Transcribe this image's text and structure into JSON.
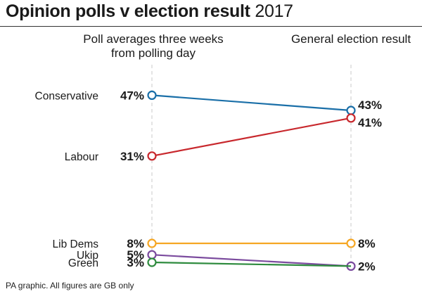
{
  "header": {
    "title_bold": "Opinion polls v election result",
    "title_year": "2017"
  },
  "columns": {
    "left": "Poll averages three weeks from polling day",
    "right": "General election result"
  },
  "footer": "PA graphic. All figures are GB only",
  "chart_data": {
    "type": "line",
    "categories": [
      "Poll averages three weeks from polling day",
      "General election result"
    ],
    "series": [
      {
        "name": "Conservative",
        "values": [
          47,
          43
        ],
        "labels": [
          "47%",
          "43%"
        ],
        "color": "#1a6fa8"
      },
      {
        "name": "Labour",
        "values": [
          31,
          41
        ],
        "labels": [
          "31%",
          "41%"
        ],
        "color": "#c8282d"
      },
      {
        "name": "Lib Dems",
        "values": [
          8,
          8
        ],
        "labels": [
          "8%",
          "8%"
        ],
        "color": "#f5a623"
      },
      {
        "name": "Ukip",
        "values": [
          5,
          2
        ],
        "labels": [
          "5%",
          "2%"
        ],
        "color": "#7b4b9e"
      },
      {
        "name": "Green",
        "values": [
          3,
          2
        ],
        "labels": [
          "3%",
          "2%"
        ],
        "color": "#2e8b3e"
      }
    ]
  }
}
